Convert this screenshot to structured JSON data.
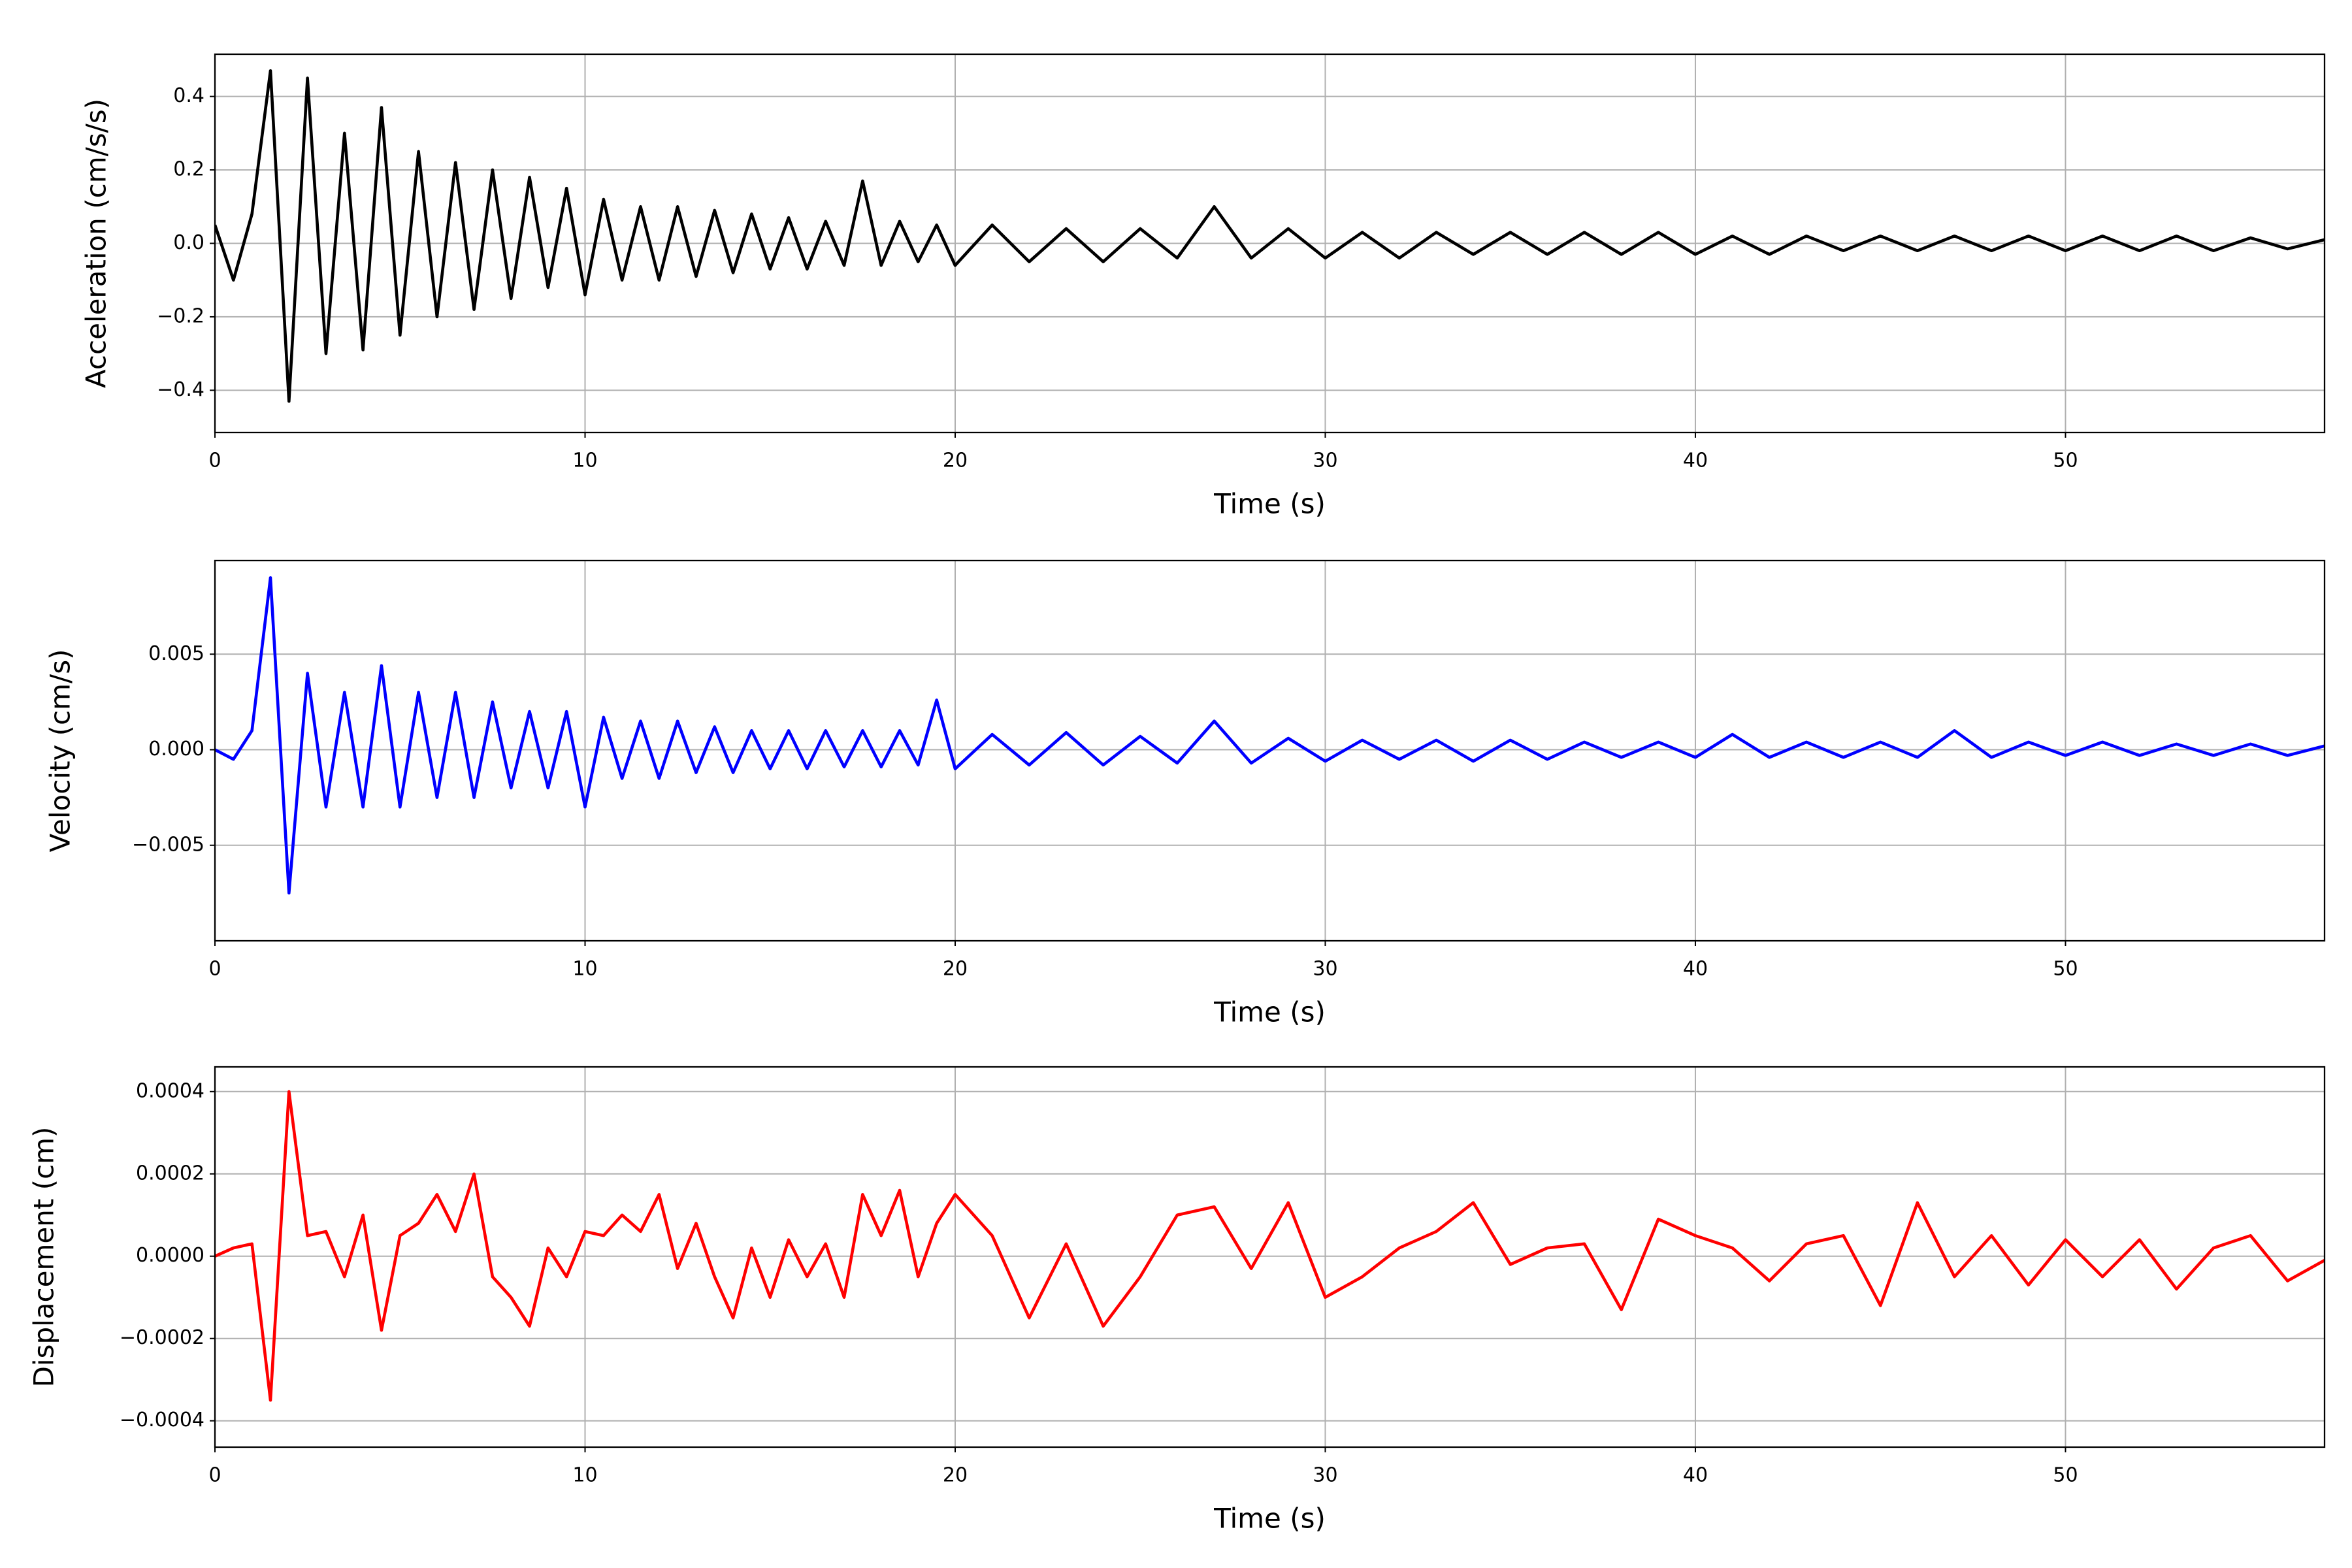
{
  "chart_data": [
    {
      "type": "line",
      "xlabel": "Time (s)",
      "ylabel": "Acceleration (cm/s/s)",
      "color": "#000000",
      "grid": true,
      "xlim": [
        0,
        57
      ],
      "ylim": [
        -0.515,
        0.515
      ],
      "xticks": [
        0,
        10,
        20,
        30,
        40,
        50
      ],
      "yticks": [
        {
          "value": -0.4,
          "label": "−0.4"
        },
        {
          "value": -0.2,
          "label": "−0.2"
        },
        {
          "value": 0,
          "label": "0.0"
        },
        {
          "value": 0.2,
          "label": "0.2"
        },
        {
          "value": 0.4,
          "label": "0.4"
        }
      ],
      "x": [
        0,
        0.5,
        1,
        1.5,
        2,
        2.5,
        3,
        3.5,
        4,
        4.5,
        5,
        5.5,
        6,
        6.5,
        7,
        7.5,
        8,
        8.5,
        9,
        9.5,
        10,
        10.5,
        11,
        11.5,
        12,
        12.5,
        13,
        13.5,
        14,
        14.5,
        15,
        15.5,
        16,
        16.5,
        17,
        17.5,
        18,
        18.5,
        19,
        19.5,
        20,
        21,
        22,
        23,
        24,
        25,
        26,
        27,
        28,
        29,
        30,
        31,
        32,
        33,
        34,
        35,
        36,
        37,
        38,
        39,
        40,
        41,
        42,
        43,
        44,
        45,
        46,
        47,
        48,
        49,
        50,
        51,
        52,
        53,
        54,
        55,
        56,
        57
      ],
      "values": [
        0.05,
        -0.1,
        0.08,
        0.47,
        -0.43,
        0.45,
        -0.3,
        0.3,
        -0.29,
        0.37,
        -0.25,
        0.25,
        -0.2,
        0.22,
        -0.18,
        0.2,
        -0.15,
        0.18,
        -0.12,
        0.15,
        -0.14,
        0.12,
        -0.1,
        0.1,
        -0.1,
        0.1,
        -0.09,
        0.09,
        -0.08,
        0.08,
        -0.07,
        0.07,
        -0.07,
        0.06,
        -0.06,
        0.17,
        -0.06,
        0.06,
        -0.05,
        0.05,
        -0.06,
        0.05,
        -0.05,
        0.04,
        -0.05,
        0.04,
        -0.04,
        0.1,
        -0.04,
        0.04,
        -0.04,
        0.03,
        -0.04,
        0.03,
        -0.03,
        0.03,
        -0.03,
        0.03,
        -0.03,
        0.03,
        -0.03,
        0.02,
        -0.03,
        0.02,
        -0.02,
        0.02,
        -0.02,
        0.02,
        -0.02,
        0.02,
        -0.02,
        0.02,
        -0.02,
        0.02,
        -0.02,
        0.015,
        -0.015,
        0.01
      ]
    },
    {
      "type": "line",
      "xlabel": "Time (s)",
      "ylabel": "Velocity (cm/s)",
      "color": "#0000ff",
      "grid": true,
      "xlim": [
        0,
        57
      ],
      "ylim": [
        -0.01,
        0.0099
      ],
      "xticks": [
        0,
        10,
        20,
        30,
        40,
        50
      ],
      "yticks": [
        {
          "value": -0.005,
          "label": "−0.005"
        },
        {
          "value": 0,
          "label": "0.000"
        },
        {
          "value": 0.005,
          "label": "0.005"
        }
      ],
      "x": [
        0,
        0.5,
        1,
        1.5,
        2,
        2.5,
        3,
        3.5,
        4,
        4.5,
        5,
        5.5,
        6,
        6.5,
        7,
        7.5,
        8,
        8.5,
        9,
        9.5,
        10,
        10.5,
        11,
        11.5,
        12,
        12.5,
        13,
        13.5,
        14,
        14.5,
        15,
        15.5,
        16,
        16.5,
        17,
        17.5,
        18,
        18.5,
        19,
        19.5,
        20,
        21,
        22,
        23,
        24,
        25,
        26,
        27,
        28,
        29,
        30,
        31,
        32,
        33,
        34,
        35,
        36,
        37,
        38,
        39,
        40,
        41,
        42,
        43,
        44,
        45,
        46,
        47,
        48,
        49,
        50,
        51,
        52,
        53,
        54,
        55,
        56,
        57
      ],
      "values": [
        0,
        -0.0005,
        0.001,
        0.009,
        -0.0075,
        0.004,
        -0.003,
        0.003,
        -0.003,
        0.0044,
        -0.003,
        0.003,
        -0.0025,
        0.003,
        -0.0025,
        0.0025,
        -0.002,
        0.002,
        -0.002,
        0.002,
        -0.003,
        0.0017,
        -0.0015,
        0.0015,
        -0.0015,
        0.0015,
        -0.0012,
        0.0012,
        -0.0012,
        0.001,
        -0.001,
        0.001,
        -0.001,
        0.001,
        -0.0009,
        0.001,
        -0.0009,
        0.001,
        -0.0008,
        0.0026,
        -0.001,
        0.0008,
        -0.0008,
        0.0009,
        -0.0008,
        0.0007,
        -0.0007,
        0.0015,
        -0.0007,
        0.0006,
        -0.0006,
        0.0005,
        -0.0005,
        0.0005,
        -0.0006,
        0.0005,
        -0.0005,
        0.0004,
        -0.0004,
        0.0004,
        -0.0004,
        0.0008,
        -0.0004,
        0.0004,
        -0.0004,
        0.0004,
        -0.0004,
        0.001,
        -0.0004,
        0.0004,
        -0.0003,
        0.0004,
        -0.0003,
        0.0003,
        -0.0003,
        0.0003,
        -0.0003,
        0.0002
      ]
    },
    {
      "type": "line",
      "xlabel": "Time (s)",
      "ylabel": "Displacement (cm)",
      "color": "#ff0000",
      "grid": true,
      "xlim": [
        0,
        57
      ],
      "ylim": [
        -0.000464,
        0.00046
      ],
      "xticks": [
        0,
        10,
        20,
        30,
        40,
        50
      ],
      "yticks": [
        {
          "value": -0.0004,
          "label": "−0.0004"
        },
        {
          "value": -0.0002,
          "label": "−0.0002"
        },
        {
          "value": 0,
          "label": "0.0000"
        },
        {
          "value": 0.0002,
          "label": "0.0002"
        },
        {
          "value": 0.0004,
          "label": "0.0004"
        }
      ],
      "x": [
        0,
        0.5,
        1,
        1.5,
        2,
        2.5,
        3,
        3.5,
        4,
        4.5,
        5,
        5.5,
        6,
        6.5,
        7,
        7.5,
        8,
        8.5,
        9,
        9.5,
        10,
        10.5,
        11,
        11.5,
        12,
        12.5,
        13,
        13.5,
        14,
        14.5,
        15,
        15.5,
        16,
        16.5,
        17,
        17.5,
        18,
        18.5,
        19,
        19.5,
        20,
        21,
        22,
        23,
        24,
        25,
        26,
        27,
        28,
        29,
        30,
        31,
        32,
        33,
        34,
        35,
        36,
        37,
        38,
        39,
        40,
        41,
        42,
        43,
        44,
        45,
        46,
        47,
        48,
        49,
        50,
        51,
        52,
        53,
        54,
        55,
        56,
        57
      ],
      "values": [
        0,
        2e-05,
        3e-05,
        -0.00035,
        0.0004,
        5e-05,
        6e-05,
        -5e-05,
        0.0001,
        -0.00018,
        5e-05,
        8e-05,
        0.00015,
        6e-05,
        0.0002,
        -5e-05,
        -0.0001,
        -0.00017,
        2e-05,
        -5e-05,
        6e-05,
        5e-05,
        0.0001,
        6e-05,
        0.00015,
        -3e-05,
        8e-05,
        -5e-05,
        -0.00015,
        2e-05,
        -0.0001,
        4e-05,
        -5e-05,
        3e-05,
        -0.0001,
        0.00015,
        5e-05,
        0.00016,
        -5e-05,
        8e-05,
        0.00015,
        5e-05,
        -0.00015,
        3e-05,
        -0.00017,
        -5e-05,
        0.0001,
        0.00012,
        -3e-05,
        0.00013,
        -0.0001,
        -5e-05,
        2e-05,
        6e-05,
        0.00013,
        -2e-05,
        2e-05,
        3e-05,
        -0.00013,
        9e-05,
        5e-05,
        2e-05,
        -6e-05,
        3e-05,
        5e-05,
        -0.00012,
        0.00013,
        -5e-05,
        5e-05,
        -7e-05,
        4e-05,
        -5e-05,
        4e-05,
        -8e-05,
        2e-05,
        5e-05,
        -6e-05,
        -1e-05
      ]
    }
  ]
}
